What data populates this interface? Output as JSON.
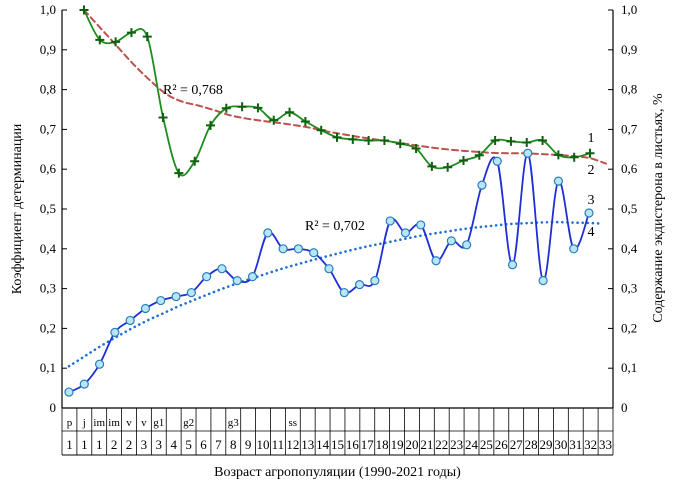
{
  "chart_data": {
    "type": "line",
    "xlabel": "Возраст агропопуляции (1990-2021 годы)",
    "ylabel": "Коэффициент детерминации",
    "y2label": "Содержание экдистерона в листьях, %",
    "ylim": [
      0,
      1
    ],
    "y2lim": [
      0,
      1
    ],
    "y_ticks": [
      "0",
      "0,1",
      "0,2",
      "0,3",
      "0,4",
      "0,5",
      "0,6",
      "0,7",
      "0,8",
      "0,9",
      "1,0"
    ],
    "y2_ticks": [
      "0",
      "0,1",
      "0,2",
      "0,3",
      "0,4",
      "0,5",
      "0,6",
      "0,7",
      "0,8",
      "0,9",
      "1,0"
    ],
    "x_ticks": [
      "1",
      "1",
      "1",
      "2",
      "2",
      "3",
      "3",
      "4",
      "5",
      "6",
      "7",
      "8",
      "9",
      "10",
      "11",
      "12",
      "13",
      "14",
      "15",
      "16",
      "17",
      "18",
      "19",
      "20",
      "21",
      "22",
      "23",
      "24",
      "25",
      "26",
      "27",
      "28",
      "29",
      "30",
      "31",
      "32",
      "33"
    ],
    "stage_labels": [
      "p",
      "j",
      "im",
      "im",
      "v",
      "v",
      "g1",
      "",
      "g2",
      "",
      "",
      "g3",
      "",
      "",
      "",
      "ss"
    ],
    "series": [
      {
        "name": "1",
        "style": "solid",
        "color": "#1e8c1e",
        "marker": "plus",
        "y": [
          1.0,
          0.925,
          0.92,
          0.943,
          0.933,
          0.73,
          0.59,
          0.62,
          0.71,
          0.753,
          0.757,
          0.754,
          0.723,
          0.743,
          0.72,
          0.698,
          0.68,
          0.675,
          0.672,
          0.672,
          0.664,
          0.652,
          0.607,
          0.605,
          0.622,
          0.635,
          0.672,
          0.67,
          0.667,
          0.672,
          0.636,
          0.63,
          0.64
        ]
      },
      {
        "name": "2",
        "style": "dashed",
        "color": "#c0504d",
        "y": [
          1.0,
          0.955,
          0.91,
          0.865,
          0.825,
          0.79,
          0.77,
          0.76,
          0.748,
          0.735,
          0.727,
          0.721,
          0.716,
          0.71,
          0.703,
          0.694,
          0.687,
          0.68,
          0.674,
          0.668,
          0.662,
          0.656,
          0.651,
          0.647,
          0.644,
          0.641,
          0.64,
          0.64,
          0.638,
          0.636,
          0.633,
          0.628,
          0.614
        ]
      },
      {
        "name": "3",
        "style": "solid",
        "color": "#1f2fd6",
        "marker": "circle",
        "y": [
          0.04,
          0.06,
          0.11,
          0.19,
          0.22,
          0.25,
          0.27,
          0.28,
          0.29,
          0.33,
          0.35,
          0.32,
          0.33,
          0.44,
          0.4,
          0.4,
          0.39,
          0.35,
          0.29,
          0.31,
          0.32,
          0.47,
          0.44,
          0.46,
          0.37,
          0.42,
          0.41,
          0.56,
          0.62,
          0.36,
          0.64,
          0.32,
          0.57,
          0.4,
          0.49
        ]
      },
      {
        "name": "4",
        "style": "dotted",
        "color": "#1f6fd6",
        "y": [
          0.105,
          0.13,
          0.155,
          0.178,
          0.2,
          0.22,
          0.238,
          0.256,
          0.272,
          0.288,
          0.303,
          0.317,
          0.33,
          0.343,
          0.355,
          0.366,
          0.377,
          0.387,
          0.397,
          0.406,
          0.414,
          0.422,
          0.43,
          0.437,
          0.443,
          0.449,
          0.454,
          0.458,
          0.462,
          0.464,
          0.466,
          0.467,
          0.466,
          0.465,
          0.463
        ]
      }
    ],
    "annotations": [
      {
        "text": "R² = 0,768"
      },
      {
        "text": "R² = 0,702"
      }
    ],
    "grid": false
  }
}
